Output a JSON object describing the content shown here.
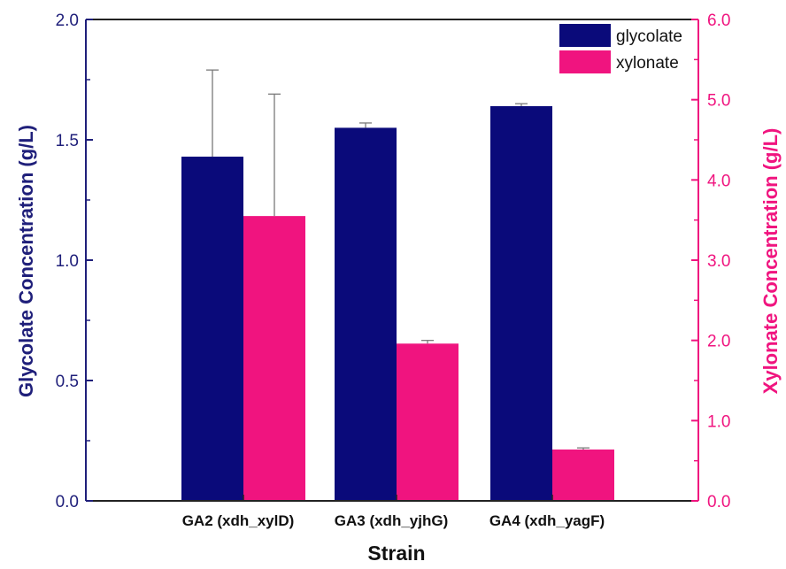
{
  "chart_data": {
    "type": "bar",
    "categories": [
      "GA2 (xdh_xylD)",
      "GA3 (xdh_yjhG)",
      "GA4 (xdh_yagF)"
    ],
    "xlabel": "Strain",
    "series": [
      {
        "name": "glycolate",
        "axis": "left",
        "color": "#0a0a7a",
        "values": [
          1.43,
          1.55,
          1.64
        ],
        "errors": [
          0.36,
          0.02,
          0.01
        ]
      },
      {
        "name": "xylonate",
        "axis": "right",
        "color": "#f0147f",
        "values": [
          3.55,
          1.96,
          0.64
        ],
        "errors": [
          1.52,
          0.04,
          0.02
        ]
      }
    ],
    "left_axis": {
      "label": "Glycolate Concentration (g/L)",
      "ylim": [
        0,
        2.0
      ],
      "ticks": [
        "0.0",
        "0.5",
        "1.0",
        "1.5",
        "2.0"
      ],
      "color": "#1f1f7a"
    },
    "right_axis": {
      "label": "Xylonate Concentration (g/L)",
      "ylim": [
        0,
        6.0
      ],
      "ticks": [
        "0.0",
        "1.0",
        "2.0",
        "3.0",
        "4.0",
        "5.0",
        "6.0"
      ],
      "color": "#f0147f"
    },
    "legend": {
      "position": "top-right"
    },
    "grid": false
  }
}
